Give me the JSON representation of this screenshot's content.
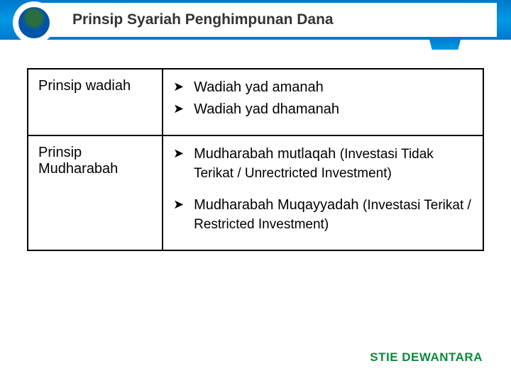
{
  "header": {
    "title": "Prinsip Syariah Penghimpunan Dana",
    "bar_color": "#0088dd",
    "title_color": "#333333"
  },
  "table": {
    "rows": [
      {
        "label": "Prinsip wadiah",
        "items": [
          {
            "text": "Wadiah yad amanah",
            "note": ""
          },
          {
            "text": "Wadiah yad dhamanah",
            "note": ""
          }
        ]
      },
      {
        "label": "Prinsip Mudharabah",
        "items": [
          {
            "text": "Mudharabah mutlaqah",
            "note": "(Investasi Tidak Terikat / Unrectricted Investment)"
          },
          {
            "text": "Mudharabah Muqayyadah",
            "note": "(Investasi Terikat / Restricted Investment)"
          }
        ]
      }
    ],
    "bullet_glyph": "➤",
    "border_color": "#000000"
  },
  "footer": {
    "text": "STIE DEWANTARA",
    "color": "#0b8a3a"
  }
}
